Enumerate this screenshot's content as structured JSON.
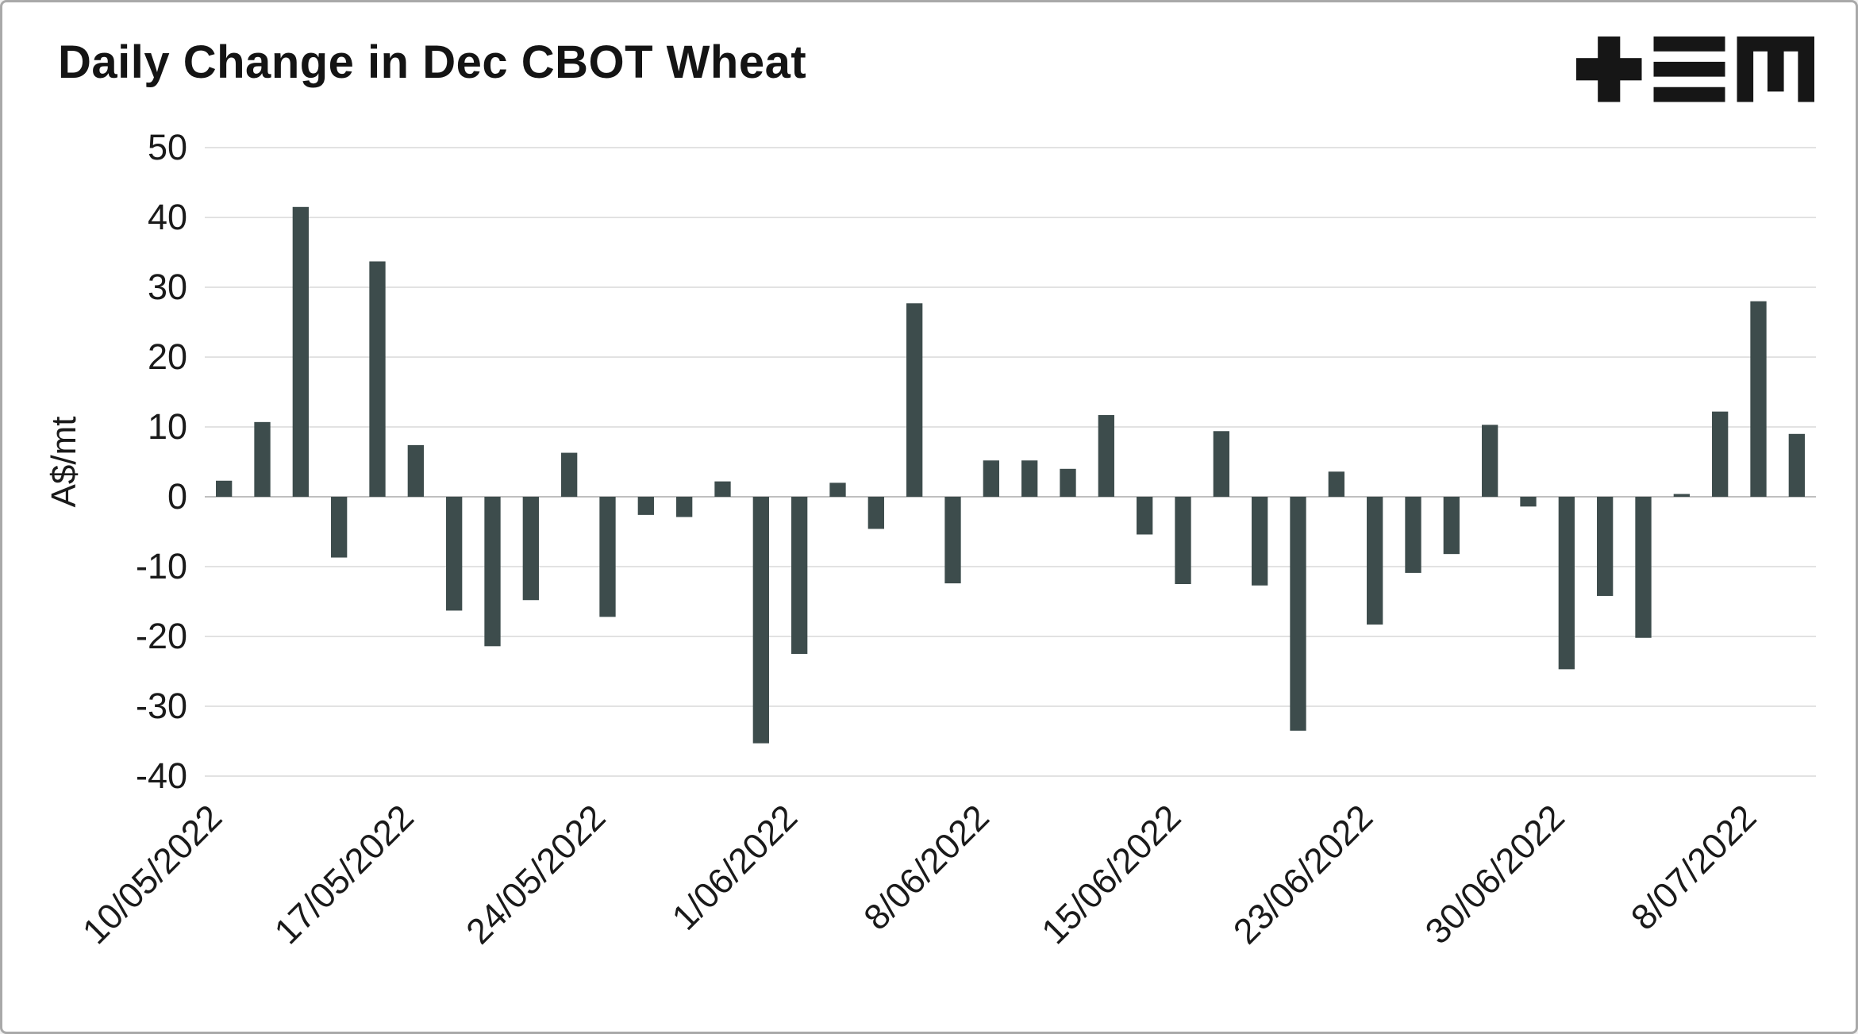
{
  "page": {
    "title": "Daily Change in Dec CBOT Wheat"
  },
  "logo": {
    "name": "tem-logo",
    "color": "#161616"
  },
  "chart_data": {
    "type": "bar",
    "title": "Daily Change in Dec CBOT Wheat",
    "xlabel": "",
    "ylabel": "A$/mt",
    "ylim": [
      -40,
      50
    ],
    "ytick_step": 10,
    "grid": true,
    "legend": "none",
    "bar_color": "#3d4c4c",
    "grid_color": "#d8d8d8",
    "zero_line_color": "#bfbfbf",
    "x_tick_labels": [
      "10/05/2022",
      "17/05/2022",
      "24/05/2022",
      "1/06/2022",
      "8/06/2022",
      "15/06/2022",
      "23/06/2022",
      "30/06/2022",
      "8/07/2022"
    ],
    "x_tick_indices": [
      0,
      5,
      10,
      15,
      20,
      25,
      30,
      35,
      40
    ],
    "values": [
      2.3,
      10.7,
      41.5,
      -8.7,
      33.7,
      7.4,
      -16.3,
      -21.4,
      -14.8,
      6.3,
      -17.2,
      -2.6,
      -2.9,
      2.2,
      -35.3,
      -22.5,
      2.0,
      -4.6,
      27.7,
      -12.4,
      5.2,
      5.2,
      4.0,
      11.7,
      -5.4,
      -12.5,
      9.4,
      -12.7,
      -33.5,
      3.6,
      -18.3,
      -10.9,
      -8.2,
      10.3,
      -1.4,
      -24.7,
      -14.2,
      -20.2,
      0.4,
      12.2,
      28.0,
      9.0
    ]
  }
}
